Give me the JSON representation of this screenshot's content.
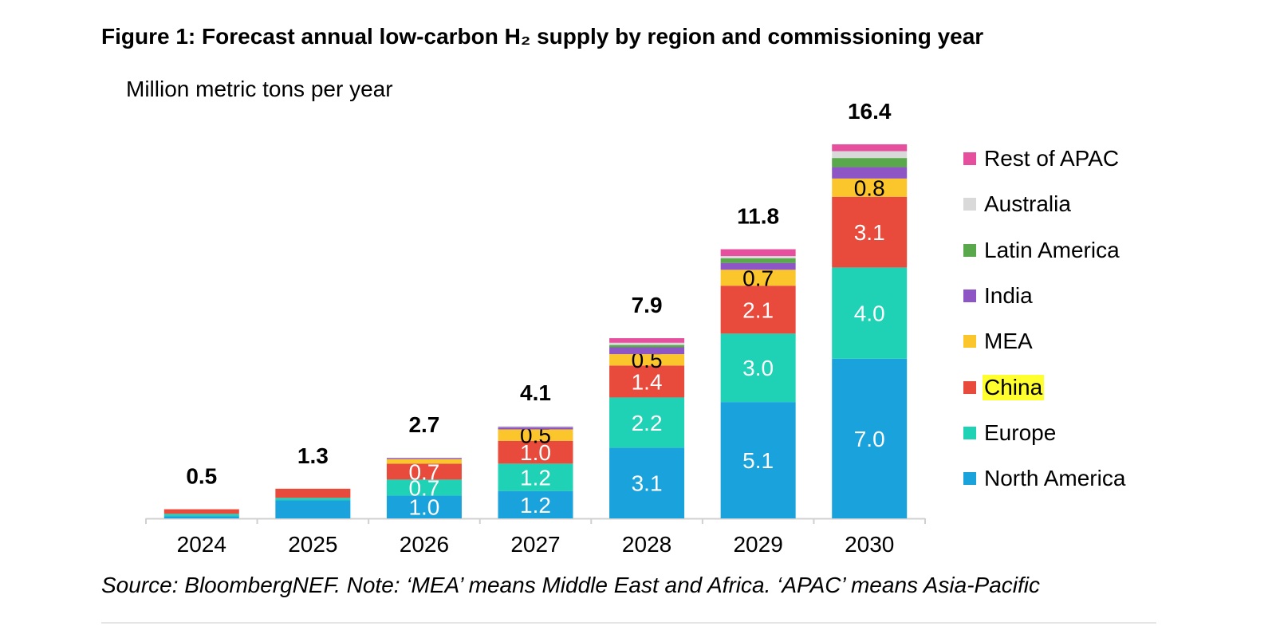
{
  "header": {
    "title": "Figure 1: Forecast annual low-carbon H₂ supply by region and commissioning year",
    "unit_label": "Million metric tons per year"
  },
  "footer": {
    "source": "Source: BloombergNEF. Note: ‘MEA’ means Middle East and Africa. ‘APAC’ means Asia-Pacific"
  },
  "chart_data": {
    "type": "bar",
    "stacked": true,
    "title": "Figure 1: Forecast annual low-carbon H₂ supply by region and commissioning year",
    "ylabel": "Million metric tons per year",
    "xlabel": "",
    "categories": [
      "2024",
      "2025",
      "2026",
      "2027",
      "2028",
      "2029",
      "2030"
    ],
    "totals": [
      0.5,
      1.3,
      2.7,
      4.1,
      7.9,
      11.8,
      16.4
    ],
    "ylim": [
      0,
      18
    ],
    "grid": false,
    "legend_position": "right",
    "series": [
      {
        "name": "North America",
        "color": "#1aa2dc",
        "values": [
          0.1,
          0.8,
          1.0,
          1.2,
          3.1,
          5.1,
          7.0
        ],
        "labels": [
          null,
          null,
          "1.0",
          "1.2",
          "3.1",
          "5.1",
          "7.0"
        ]
      },
      {
        "name": "Europe",
        "color": "#1fd1b5",
        "values": [
          0.1,
          0.1,
          0.7,
          1.2,
          2.2,
          3.0,
          4.0
        ],
        "labels": [
          null,
          null,
          "0.7",
          "1.2",
          "2.2",
          "3.0",
          "4.0"
        ]
      },
      {
        "name": "China",
        "color": "#e84a3c",
        "values": [
          0.2,
          0.4,
          0.7,
          1.0,
          1.4,
          2.1,
          3.1
        ],
        "labels": [
          null,
          null,
          "0.7",
          "1.0",
          "1.4",
          "2.1",
          "3.1"
        ]
      },
      {
        "name": "MEA",
        "color": "#fac62c",
        "values": [
          0.0,
          0.0,
          0.2,
          0.5,
          0.5,
          0.7,
          0.8
        ],
        "labels": [
          null,
          null,
          null,
          "0.5",
          "0.5",
          "0.7",
          "0.8"
        ]
      },
      {
        "name": "India",
        "color": "#8e55c4",
        "values": [
          0.0,
          0.0,
          0.05,
          0.1,
          0.3,
          0.3,
          0.5
        ],
        "labels": [
          null,
          null,
          null,
          null,
          null,
          null,
          null
        ]
      },
      {
        "name": "Latin America",
        "color": "#59a84b",
        "values": [
          0.0,
          0.0,
          0.0,
          0.0,
          0.1,
          0.2,
          0.4
        ],
        "labels": [
          null,
          null,
          null,
          null,
          null,
          null,
          null
        ]
      },
      {
        "name": "Australia",
        "color": "#d9d9d9",
        "values": [
          0.0,
          0.0,
          0.0,
          0.05,
          0.1,
          0.1,
          0.3
        ],
        "labels": [
          null,
          null,
          null,
          null,
          null,
          null,
          null
        ]
      },
      {
        "name": "Rest of APAC",
        "color": "#e64f9e",
        "values": [
          0.0,
          0.0,
          0.0,
          0.0,
          0.2,
          0.3,
          0.3
        ],
        "labels": [
          null,
          null,
          null,
          null,
          null,
          null,
          null
        ]
      }
    ],
    "label_colors": {
      "North America": "#ffffff",
      "Europe": "#ffffff",
      "China": "#ffffff",
      "MEA": "#000000"
    },
    "highlight": {
      "series": "China",
      "color": "#ffff2e"
    }
  }
}
